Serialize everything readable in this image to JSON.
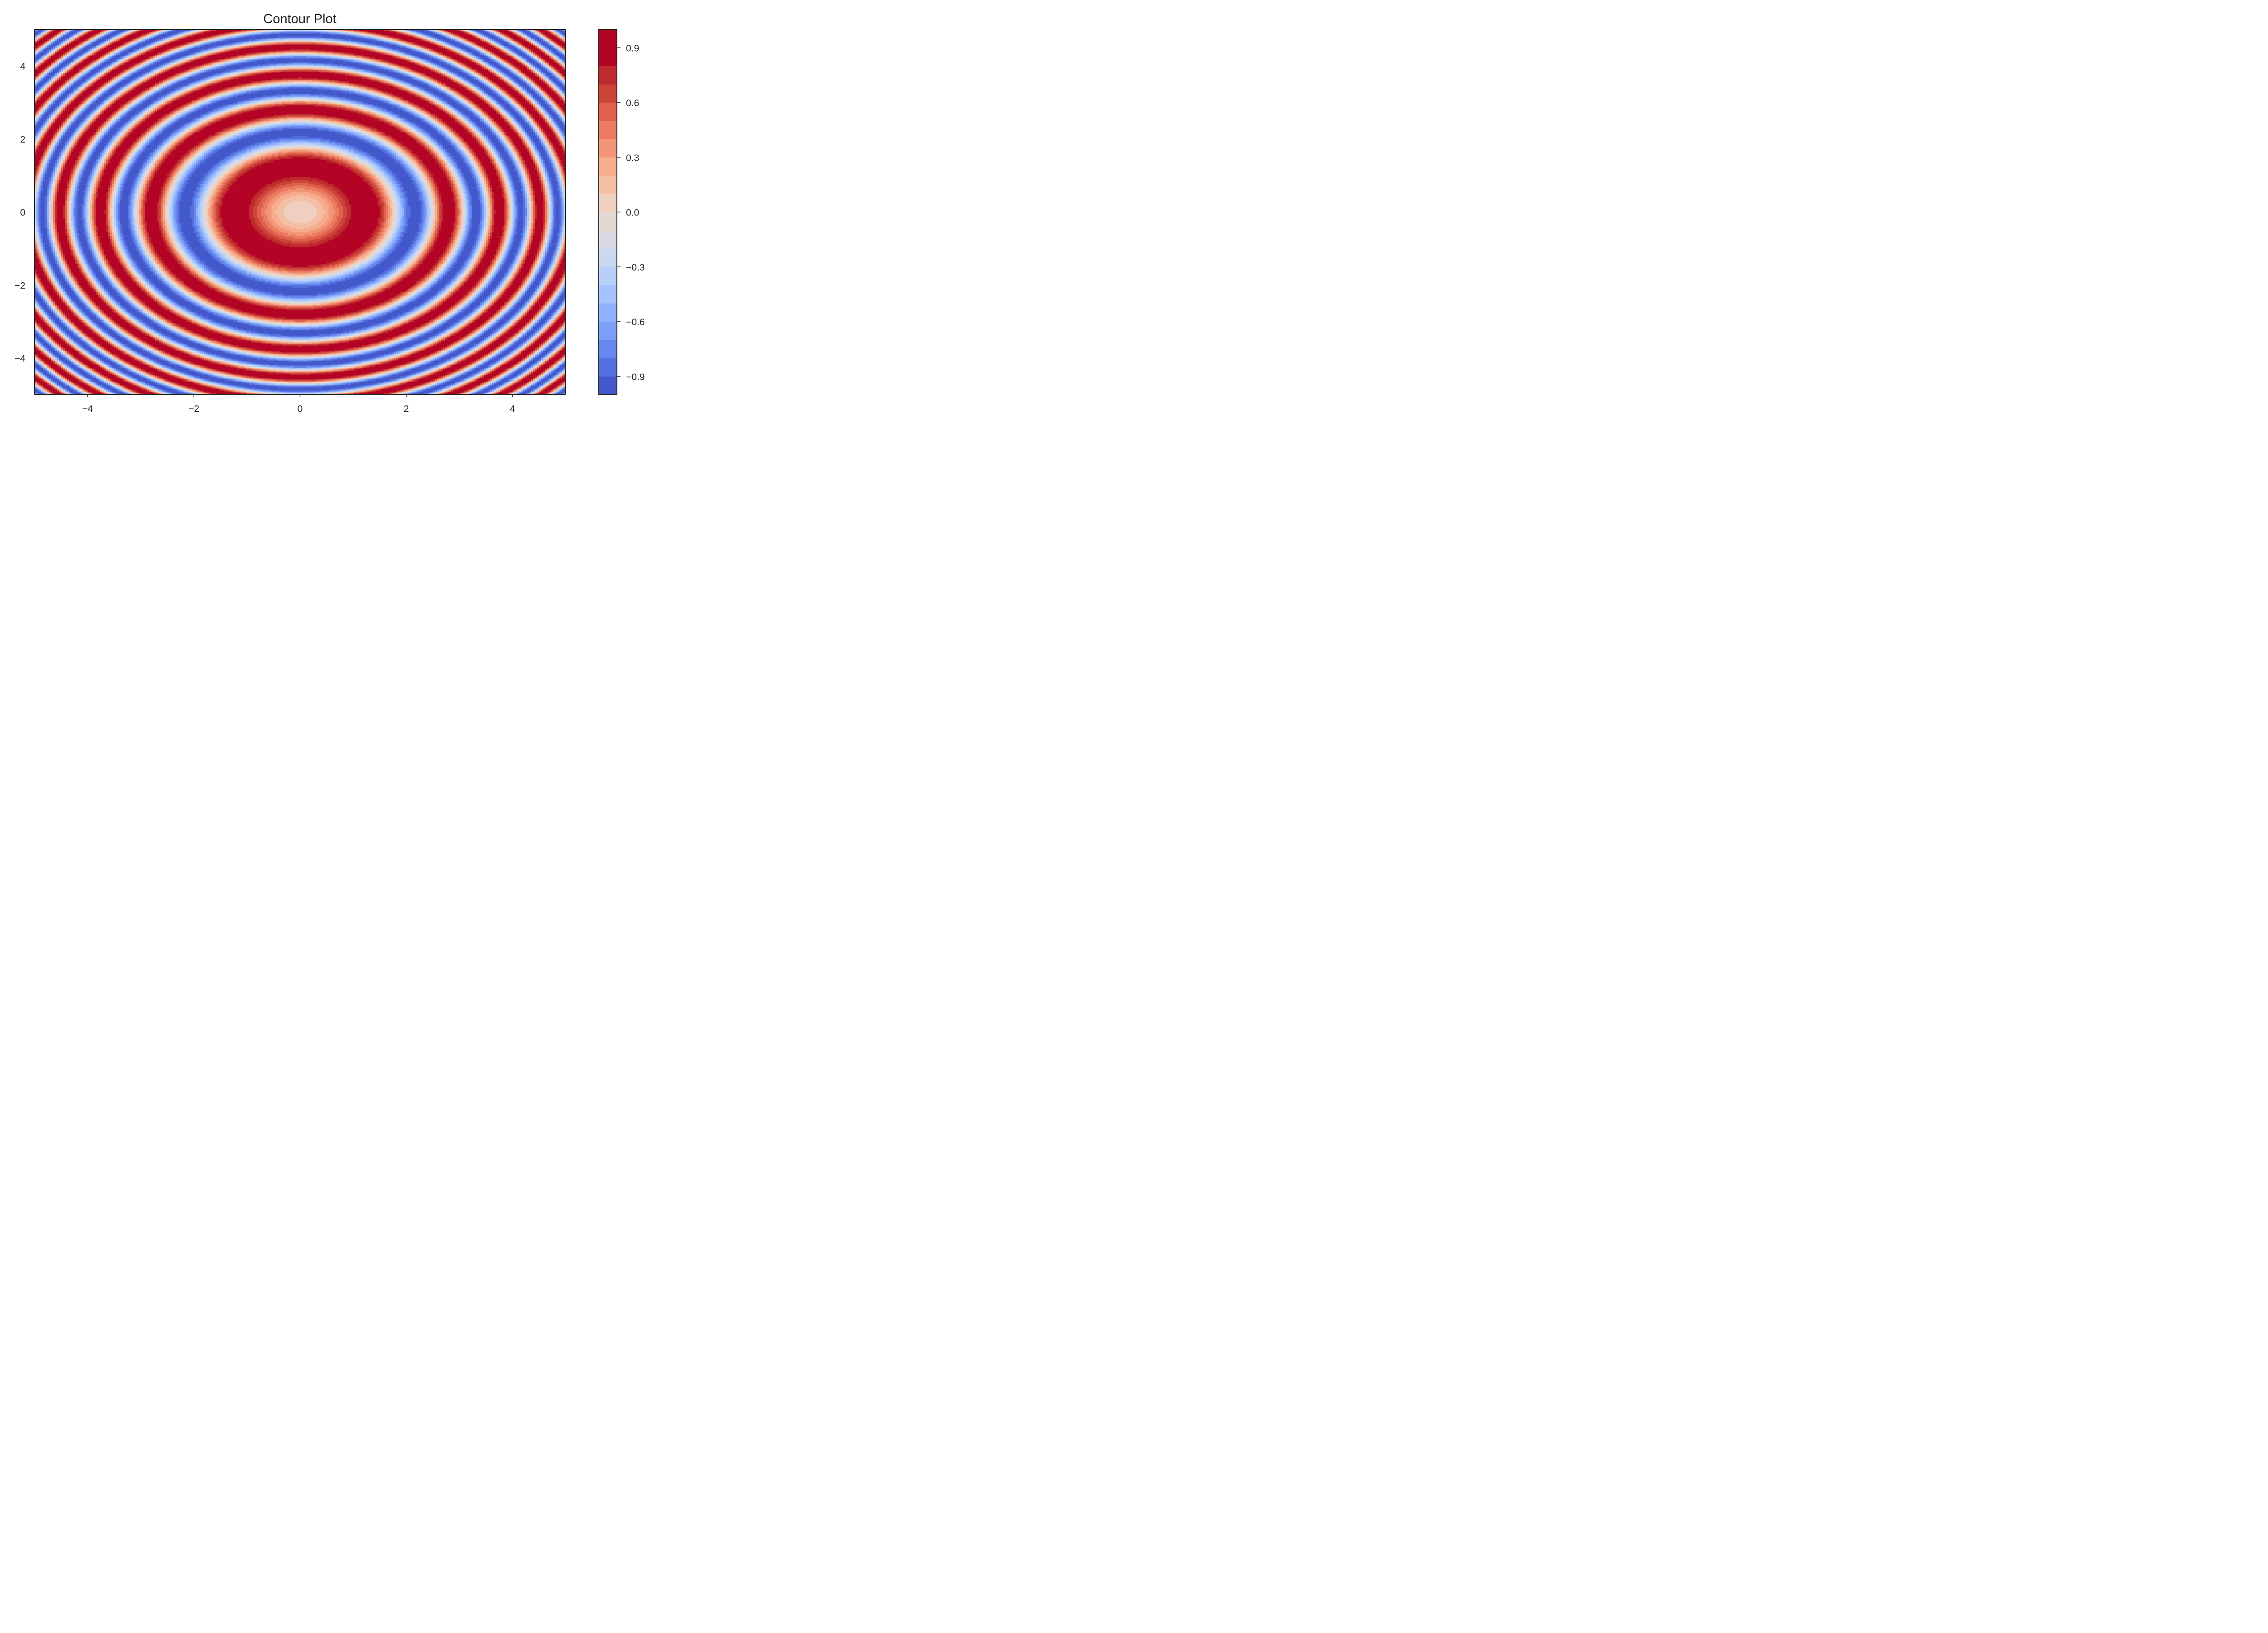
{
  "chart_data": {
    "type": "contour",
    "title": "Contour Plot",
    "xlabel": "",
    "ylabel": "",
    "function": "sin(x^2 + y^2)",
    "xlim": [
      -5,
      5
    ],
    "ylim": [
      -5,
      5
    ],
    "x_ticks": [
      -4,
      -2,
      0,
      2,
      4
    ],
    "y_ticks": [
      -4,
      -2,
      0,
      2,
      4
    ],
    "x_tick_labels": [
      "−4",
      "−2",
      "0",
      "2",
      "4"
    ],
    "y_tick_labels": [
      "−4",
      "−2",
      "0",
      "2",
      "4"
    ],
    "colormap": "coolwarm",
    "levels": [
      -1.0,
      -0.9,
      -0.8,
      -0.7,
      -0.6,
      -0.5,
      -0.4,
      -0.3,
      -0.2,
      -0.1,
      0.0,
      0.1,
      0.2,
      0.3,
      0.4,
      0.5,
      0.6,
      0.7,
      0.8,
      0.9,
      1.0
    ],
    "level_colors": [
      "#4358cb",
      "#5470de",
      "#6788ee",
      "#7b9ff9",
      "#90b2fe",
      "#a5c3fe",
      "#b8d0f9",
      "#c9d7f0",
      "#d8dce2",
      "#e4d9d2",
      "#efcfbf",
      "#f4c0a5",
      "#f6ad8e",
      "#f39577",
      "#ea7b60",
      "#de604d",
      "#cc4438",
      "#be2a2e",
      "#b40426",
      "#b40426"
    ],
    "colorbar": {
      "ticks": [
        -0.9,
        -0.6,
        -0.3,
        0.0,
        0.3,
        0.6,
        0.9
      ],
      "tick_labels": [
        "−0.9",
        "−0.6",
        "−0.3",
        "0.0",
        "0.3",
        "0.6",
        "0.9"
      ],
      "range": [
        -1.0,
        1.0
      ]
    },
    "grid": false,
    "legend": "none"
  }
}
